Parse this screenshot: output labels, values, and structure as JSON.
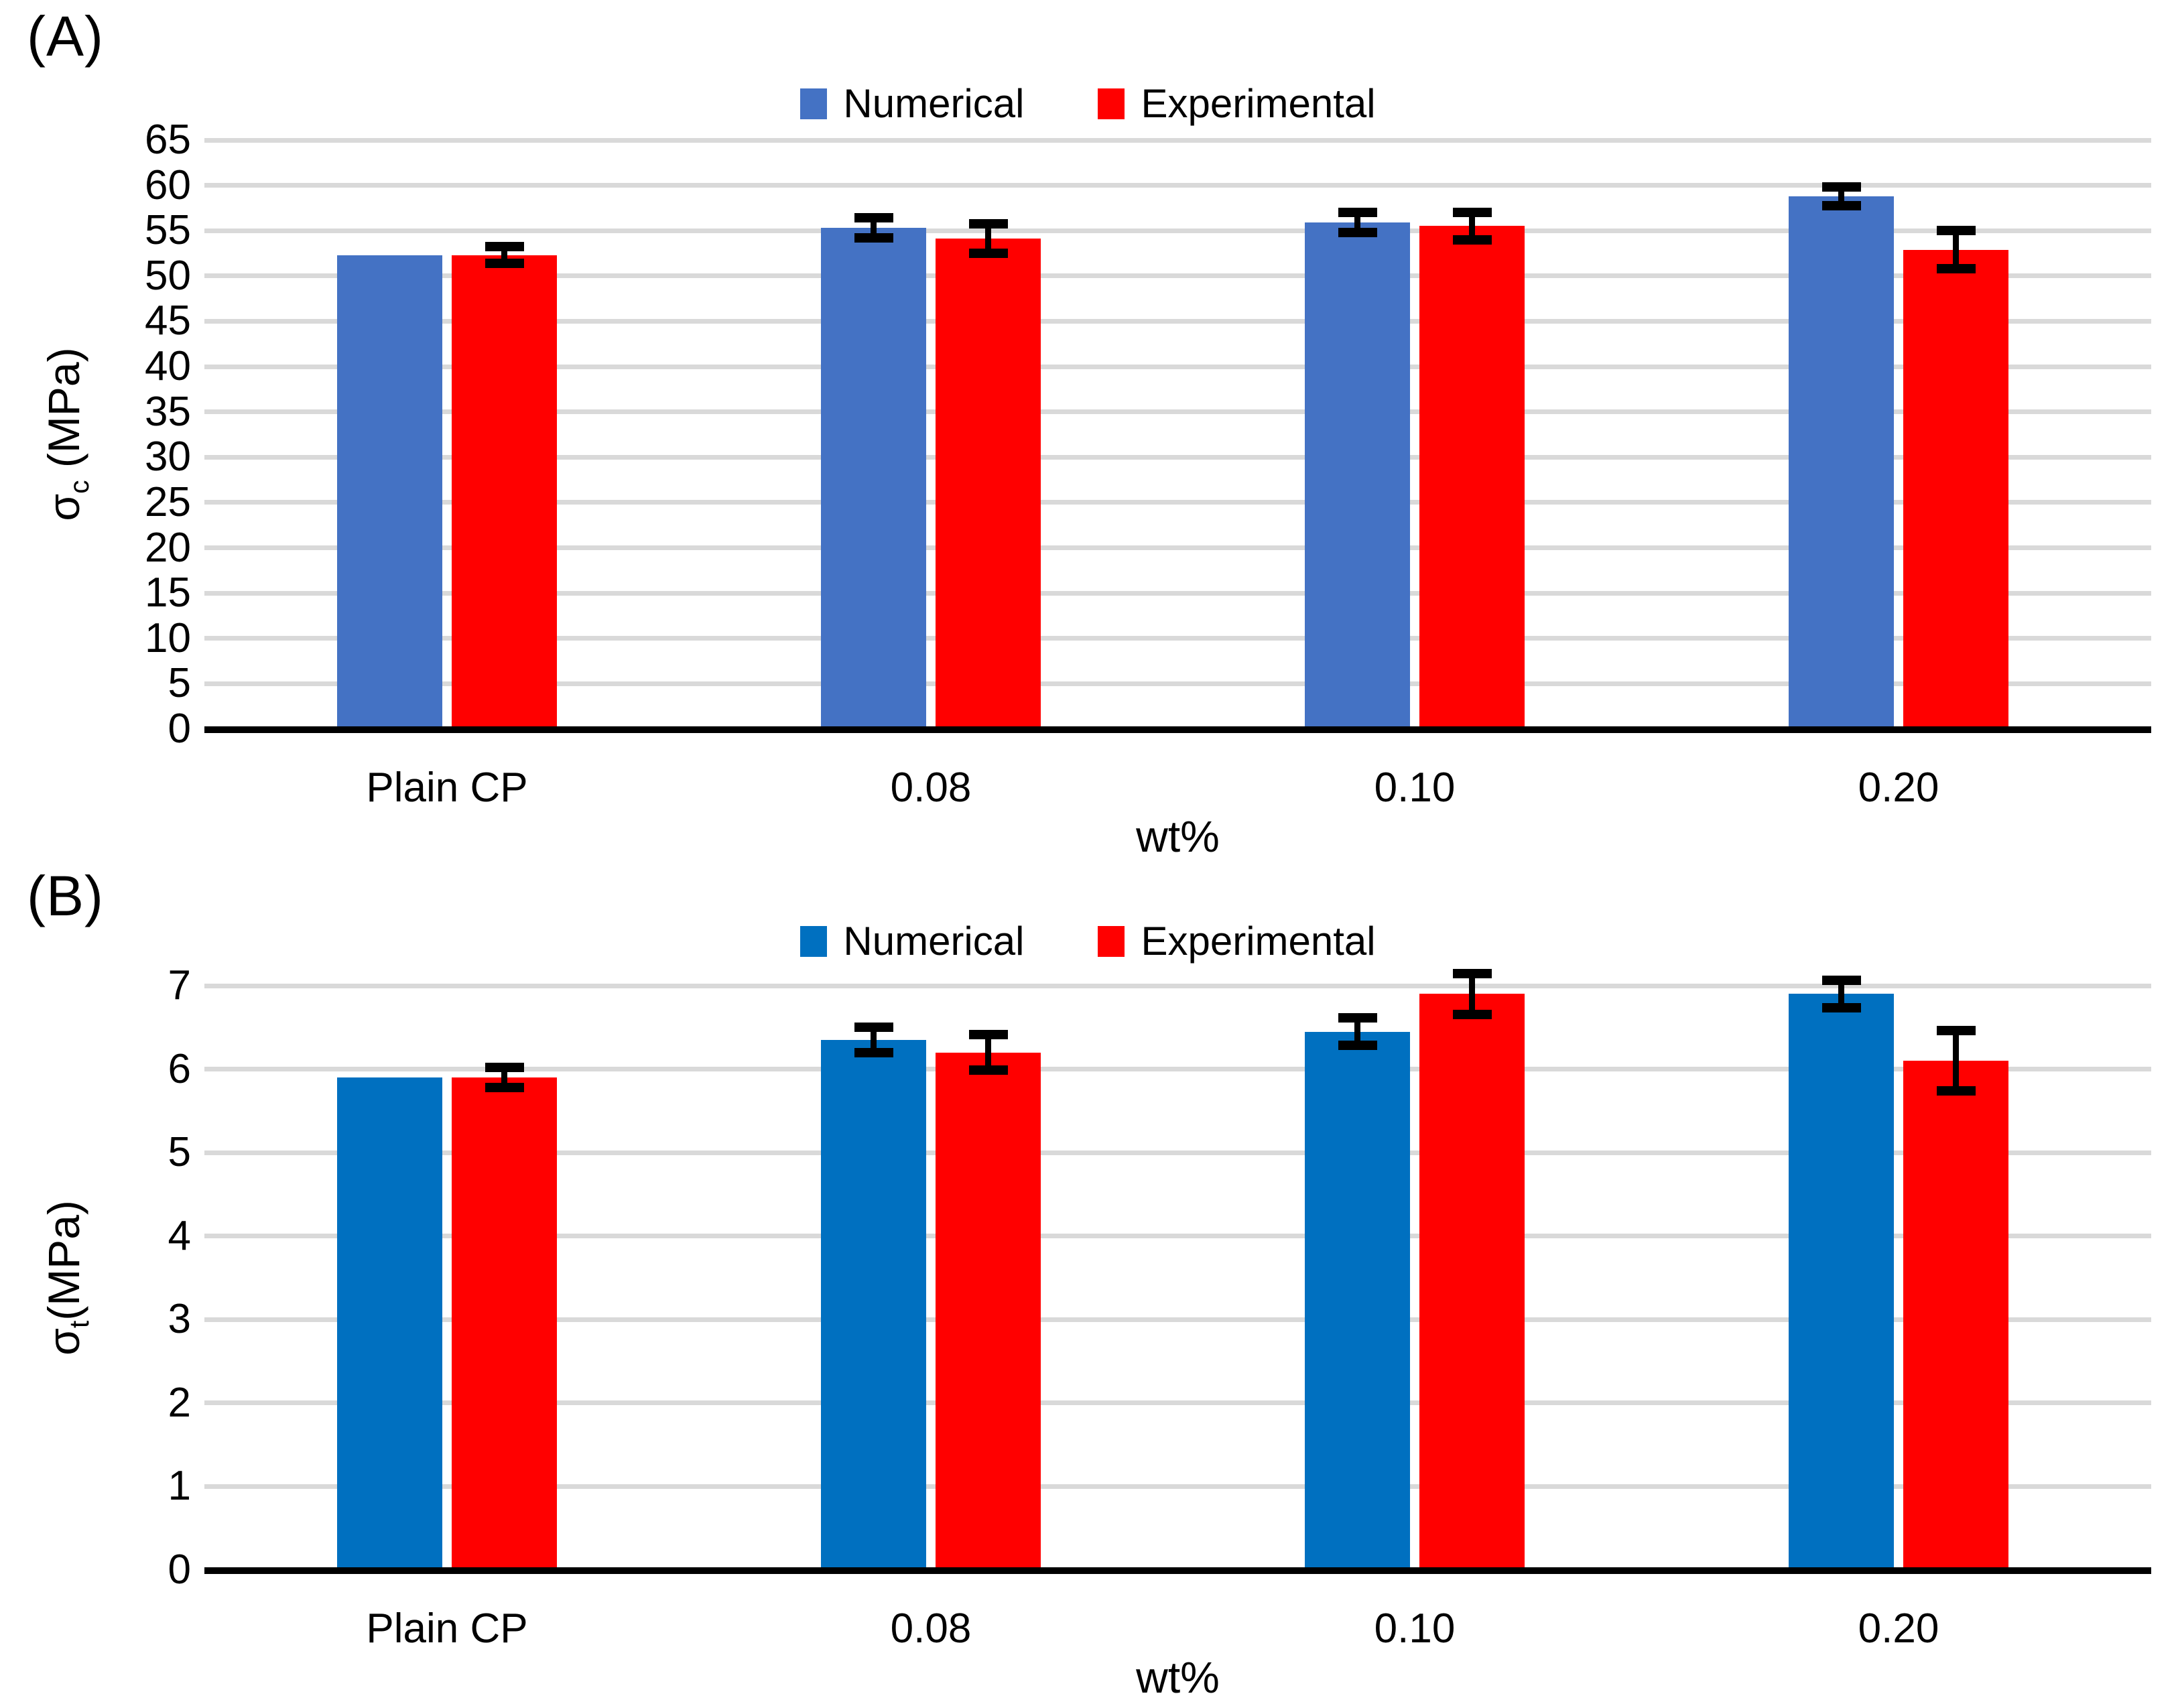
{
  "figure": {
    "background": "#ffffff",
    "gridline_color": "#D9D9D9",
    "axis_color": "#000000",
    "error_bar_color": "#000000"
  },
  "chart_data": [
    {
      "id": "A",
      "type": "bar",
      "panel_label": "(A)",
      "title": "",
      "categories": [
        "Plain CP",
        "0.08",
        "0.10",
        "0.20"
      ],
      "series": [
        {
          "name": "Numerical",
          "color": "#4472C4",
          "values": [
            52.3,
            55.3,
            55.9,
            58.8
          ],
          "errors": [
            null,
            1.2,
            1.2,
            1.1
          ]
        },
        {
          "name": "Experimental",
          "color": "#FF0000",
          "values": [
            52.3,
            54.1,
            55.5,
            52.9
          ],
          "errors": [
            1.0,
            1.7,
            1.6,
            2.2
          ]
        }
      ],
      "xlabel": "wt%",
      "ylabel": "σc (MPa)",
      "ylabel_parts": {
        "base": "σ",
        "sub": "c",
        "rest": " (MPa)"
      },
      "ylim": [
        0,
        65
      ],
      "ytick_step": 5,
      "grid": true,
      "legend_position": "top-center",
      "error_bars": true
    },
    {
      "id": "B",
      "type": "bar",
      "panel_label": "(B)",
      "title": "",
      "categories": [
        "Plain CP",
        "0.08",
        "0.10",
        "0.20"
      ],
      "series": [
        {
          "name": "Numerical",
          "color": "#0070C0",
          "values": [
            5.9,
            6.35,
            6.45,
            6.9
          ],
          "errors": [
            null,
            0.16,
            0.17,
            0.17
          ]
        },
        {
          "name": "Experimental",
          "color": "#FF0000",
          "values": [
            5.9,
            6.2,
            6.9,
            6.1
          ],
          "errors": [
            0.13,
            0.22,
            0.25,
            0.37
          ]
        }
      ],
      "xlabel": "wt%",
      "ylabel": "σt(MPa)",
      "ylabel_parts": {
        "base": "σ",
        "sub": "t",
        "rest": "(MPa)"
      },
      "ylim": [
        0,
        7
      ],
      "ytick_step": 1,
      "grid": true,
      "legend_position": "top-center",
      "error_bars": true
    }
  ]
}
